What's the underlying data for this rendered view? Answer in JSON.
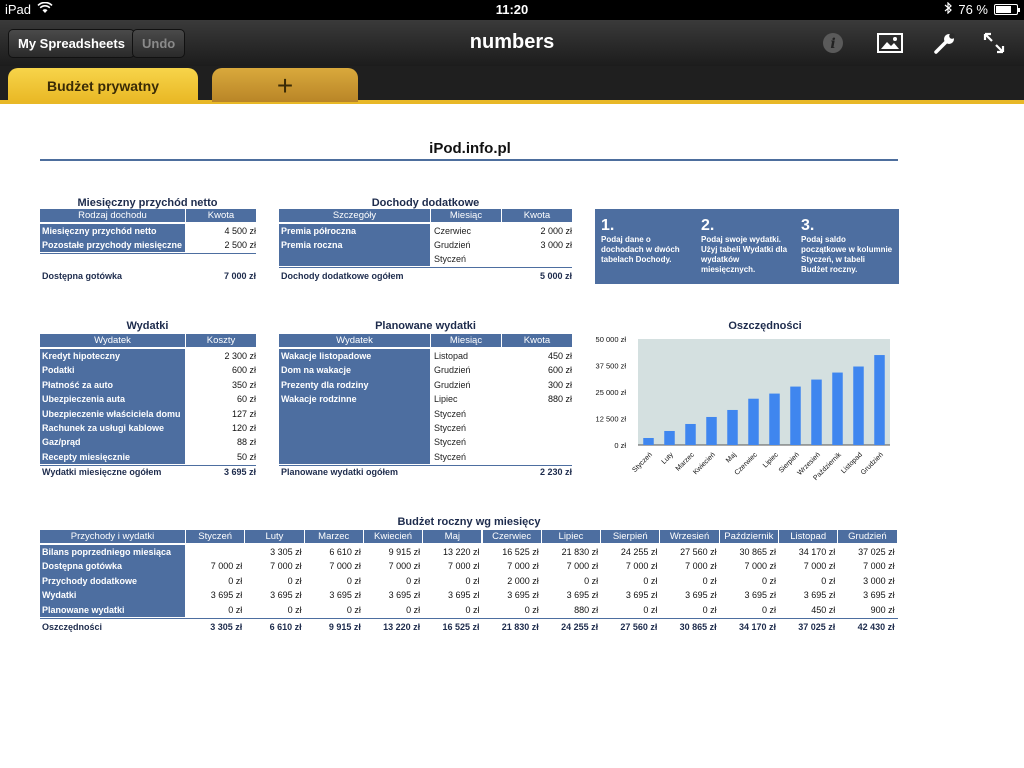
{
  "status_bar": {
    "device": "iPad",
    "time": "11:20",
    "battery": "76 %",
    "battery_level": 0.76
  },
  "toolbar": {
    "spreadsheets_label": "My Spreadsheets",
    "undo_label": "Undo",
    "title": "numbers"
  },
  "tabs": {
    "active_label": "Budżet prywatny",
    "add_label": "+"
  },
  "sheet": {
    "title": "iPod.info.pl"
  },
  "income": {
    "title": "Miesięczny przychód netto",
    "headers": [
      "Rodzaj dochodu",
      "Kwota"
    ],
    "rows": [
      [
        "Miesięczny przychód netto",
        "4 500 zł"
      ],
      [
        "Pozostałe przychody miesięczne",
        "2 500 zł"
      ]
    ],
    "total": [
      "Dostępna gotówka",
      "7 000 zł"
    ]
  },
  "extra_income": {
    "title": "Dochody dodatkowe",
    "headers": [
      "Szczegóły",
      "Miesiąc",
      "Kwota"
    ],
    "rows": [
      [
        "Premia półroczna",
        "Czerwiec",
        "2 000 zł"
      ],
      [
        "Premia roczna",
        "Grudzień",
        "3 000 zł"
      ],
      [
        "",
        "Styczeń",
        ""
      ]
    ],
    "total": [
      "Dochody dodatkowe ogółem",
      "5 000 zł"
    ]
  },
  "instructions": [
    {
      "num": "1.",
      "text": "Podaj dane o dochodach w dwóch tabelach Dochody."
    },
    {
      "num": "2.",
      "text": "Podaj swoje wydatki. Użyj tabeli Wydatki dla wydatków miesięcznych."
    },
    {
      "num": "3.",
      "text": "Podaj saldo początkowe w kolumnie Styczeń, w tabeli Budżet roczny."
    }
  ],
  "expenses": {
    "title": "Wydatki",
    "headers": [
      "Wydatek",
      "Koszty"
    ],
    "rows": [
      [
        "Kredyt hipoteczny",
        "2 300 zł"
      ],
      [
        "Podatki",
        "600 zł"
      ],
      [
        "Płatność za auto",
        "350 zł"
      ],
      [
        "Ubezpieczenia auta",
        "60 zł"
      ],
      [
        "Ubezpieczenie właściciela domu",
        "127 zł"
      ],
      [
        "Rachunek za usługi kablowe",
        "120 zł"
      ],
      [
        "Gaz/prąd",
        "88 zł"
      ],
      [
        "Recepty miesięcznie",
        "50 zł"
      ]
    ],
    "total": [
      "Wydatki miesięczne ogółem",
      "3 695 zł"
    ]
  },
  "planned": {
    "title": "Planowane wydatki",
    "headers": [
      "Wydatek",
      "Miesiąc",
      "Kwota"
    ],
    "rows": [
      [
        "Wakacje listopadowe",
        "Listopad",
        "450 zł"
      ],
      [
        "Dom na wakacje",
        "Grudzień",
        "600 zł"
      ],
      [
        "Prezenty dla rodziny",
        "Grudzień",
        "300 zł"
      ],
      [
        "Wakacje rodzinne",
        "Lipiec",
        "880 zł"
      ],
      [
        "",
        "Styczeń",
        ""
      ],
      [
        "",
        "Styczeń",
        ""
      ],
      [
        "",
        "Styczeń",
        ""
      ],
      [
        "",
        "Styczeń",
        ""
      ]
    ],
    "total": [
      "Planowane wydatki ogółem",
      "2 230 zł"
    ]
  },
  "annual": {
    "title": "Budżet roczny wg miesięcy",
    "headers": [
      "Przychody i wydatki",
      "Styczeń",
      "Luty",
      "Marzec",
      "Kwiecień",
      "Maj",
      "Czerwiec",
      "Lipiec",
      "Sierpień",
      "Wrzesień",
      "Październik",
      "Listopad",
      "Grudzień"
    ],
    "rows": [
      [
        "Bilans poprzedniego miesiąca",
        "",
        "3 305 zł",
        "6 610 zł",
        "9 915 zł",
        "13 220 zł",
        "16 525 zł",
        "21 830 zł",
        "24 255 zł",
        "27 560 zł",
        "30 865 zł",
        "34 170 zł",
        "37 025 zł"
      ],
      [
        "Dostępna gotówka",
        "7 000 zł",
        "7 000 zł",
        "7 000 zł",
        "7 000 zł",
        "7 000 zł",
        "7 000 zł",
        "7 000 zł",
        "7 000 zł",
        "7 000 zł",
        "7 000 zł",
        "7 000 zł",
        "7 000 zł"
      ],
      [
        "Przychody dodatkowe",
        "0 zł",
        "0 zł",
        "0 zł",
        "0 zł",
        "0 zł",
        "2 000 zł",
        "0 zł",
        "0 zł",
        "0 zł",
        "0 zł",
        "0 zł",
        "3 000 zł"
      ],
      [
        "Wydatki",
        "3 695 zł",
        "3 695 zł",
        "3 695 zł",
        "3 695 zł",
        "3 695 zł",
        "3 695 zł",
        "3 695 zł",
        "3 695 zł",
        "3 695 zł",
        "3 695 zł",
        "3 695 zł",
        "3 695 zł"
      ],
      [
        "Planowane wydatki",
        "0 zł",
        "0 zł",
        "0 zł",
        "0 zł",
        "0 zł",
        "0 zł",
        "880 zł",
        "0 zł",
        "0 zł",
        "0 zł",
        "450 zł",
        "900 zł"
      ]
    ],
    "total": [
      "Oszczędności",
      "3 305 zł",
      "6 610 zł",
      "9 915 zł",
      "13 220 zł",
      "16 525 zł",
      "21 830 zł",
      "24 255 zł",
      "27 560 zł",
      "30 865 zł",
      "34 170 zł",
      "37 025 zł",
      "42 430 zł"
    ]
  },
  "chart_data": {
    "type": "bar",
    "title": "Oszczędności",
    "categories": [
      "Styczeń",
      "Luty",
      "Marzec",
      "Kwiecień",
      "Maj",
      "Czerwiec",
      "Lipiec",
      "Sierpień",
      "Wrzesień",
      "Październik",
      "Listopad",
      "Grudzień"
    ],
    "values": [
      3305,
      6610,
      9915,
      13220,
      16525,
      21830,
      24255,
      27560,
      30865,
      34170,
      37025,
      42430
    ],
    "ylim": [
      0,
      50000
    ],
    "yticks": [
      "0 zł",
      "12 500 zł",
      "25 000 zł",
      "37 500 zł",
      "50 000 zł"
    ],
    "grid": false,
    "colors": {
      "bar": "#3f86ef",
      "plot_bg": "#d4e0e0"
    }
  }
}
